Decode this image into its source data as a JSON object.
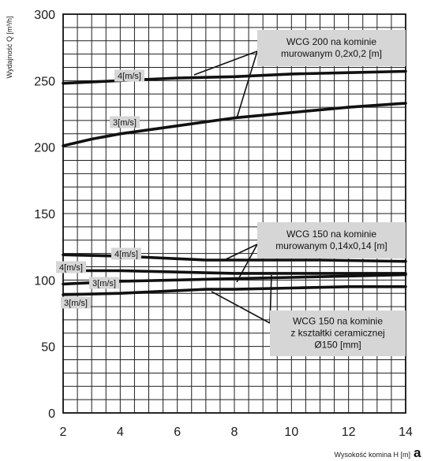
{
  "chart_data": {
    "type": "line",
    "xlabel": "Wysokość komina H [m]",
    "ylabel": "Wydajność Q [m³/h]",
    "panel_label": "a",
    "xlim": [
      2,
      14
    ],
    "ylim": [
      0,
      300
    ],
    "x_ticks": [
      2,
      4,
      6,
      8,
      10,
      12,
      14
    ],
    "y_ticks": [
      0,
      50,
      100,
      150,
      200,
      250,
      300
    ],
    "grid": true,
    "grid_x_step": 0.5,
    "grid_y_step": 10,
    "series": [
      {
        "group": "WCG 200 na kominie murowanym 0,2x0,2 [m]",
        "name": "4[m/s]",
        "x": [
          2,
          4,
          6,
          8,
          10,
          12,
          14
        ],
        "y": [
          248,
          250,
          252,
          253,
          255,
          256,
          257
        ]
      },
      {
        "group": "WCG 200 na kominie murowanym 0,2x0,2 [m]",
        "name": "3[m/s]",
        "x": [
          2,
          3,
          4,
          6,
          8,
          10,
          12,
          14
        ],
        "y": [
          201,
          206,
          210,
          216,
          222,
          226,
          230,
          233
        ]
      },
      {
        "group": "WCG 150 na kominie murowanym 0,14x0,14 [m]",
        "name": "4[m/s]",
        "x": [
          2,
          4,
          6,
          7,
          9,
          11,
          14
        ],
        "y": [
          119,
          118,
          116,
          115,
          115,
          115,
          114
        ]
      },
      {
        "group": "WCG 150 na kominie murowanym 0,14x0,14 [m]",
        "name": "3[m/s]",
        "x": [
          2,
          4,
          6,
          8,
          10,
          12,
          14
        ],
        "y": [
          97,
          99,
          100,
          101,
          102,
          103,
          104
        ]
      },
      {
        "group": "WCG 150 na kominie z kształtki ceramicznej Ø150 [mm]",
        "name": "4[m/s]",
        "x": [
          2,
          4,
          6,
          8,
          9,
          10,
          12,
          14
        ],
        "y": [
          107,
          107,
          106,
          105,
          105,
          105,
          105,
          105
        ]
      },
      {
        "group": "WCG 150 na kominie z kształtki ceramicznej Ø150 [mm]",
        "name": "3[m/s]",
        "x": [
          2,
          4,
          6,
          7,
          8,
          10,
          12,
          14
        ],
        "y": [
          89,
          90,
          92,
          93,
          93,
          94,
          95,
          95
        ]
      }
    ],
    "curve_labels": [
      {
        "text": "4[m/s]",
        "series": 0
      },
      {
        "text": "3[m/s]",
        "series": 1
      },
      {
        "text": "4[m/s]",
        "series": 2
      },
      {
        "text": "4[m/s]",
        "series": 4
      },
      {
        "text": "3[m/s]",
        "series": 3
      },
      {
        "text": "3[m/s]",
        "series": 5
      }
    ],
    "annotations": [
      {
        "lines": [
          "WCG 200 na kominie",
          "murowanym 0,2x0,2 [m]"
        ]
      },
      {
        "lines": [
          "WCG 150 na kominie",
          "murowanym 0,14x0,14 [m]"
        ]
      },
      {
        "lines": [
          "WCG 150 na kominie",
          "z kształtki ceramicznej",
          "Ø150 [mm]"
        ]
      }
    ]
  }
}
